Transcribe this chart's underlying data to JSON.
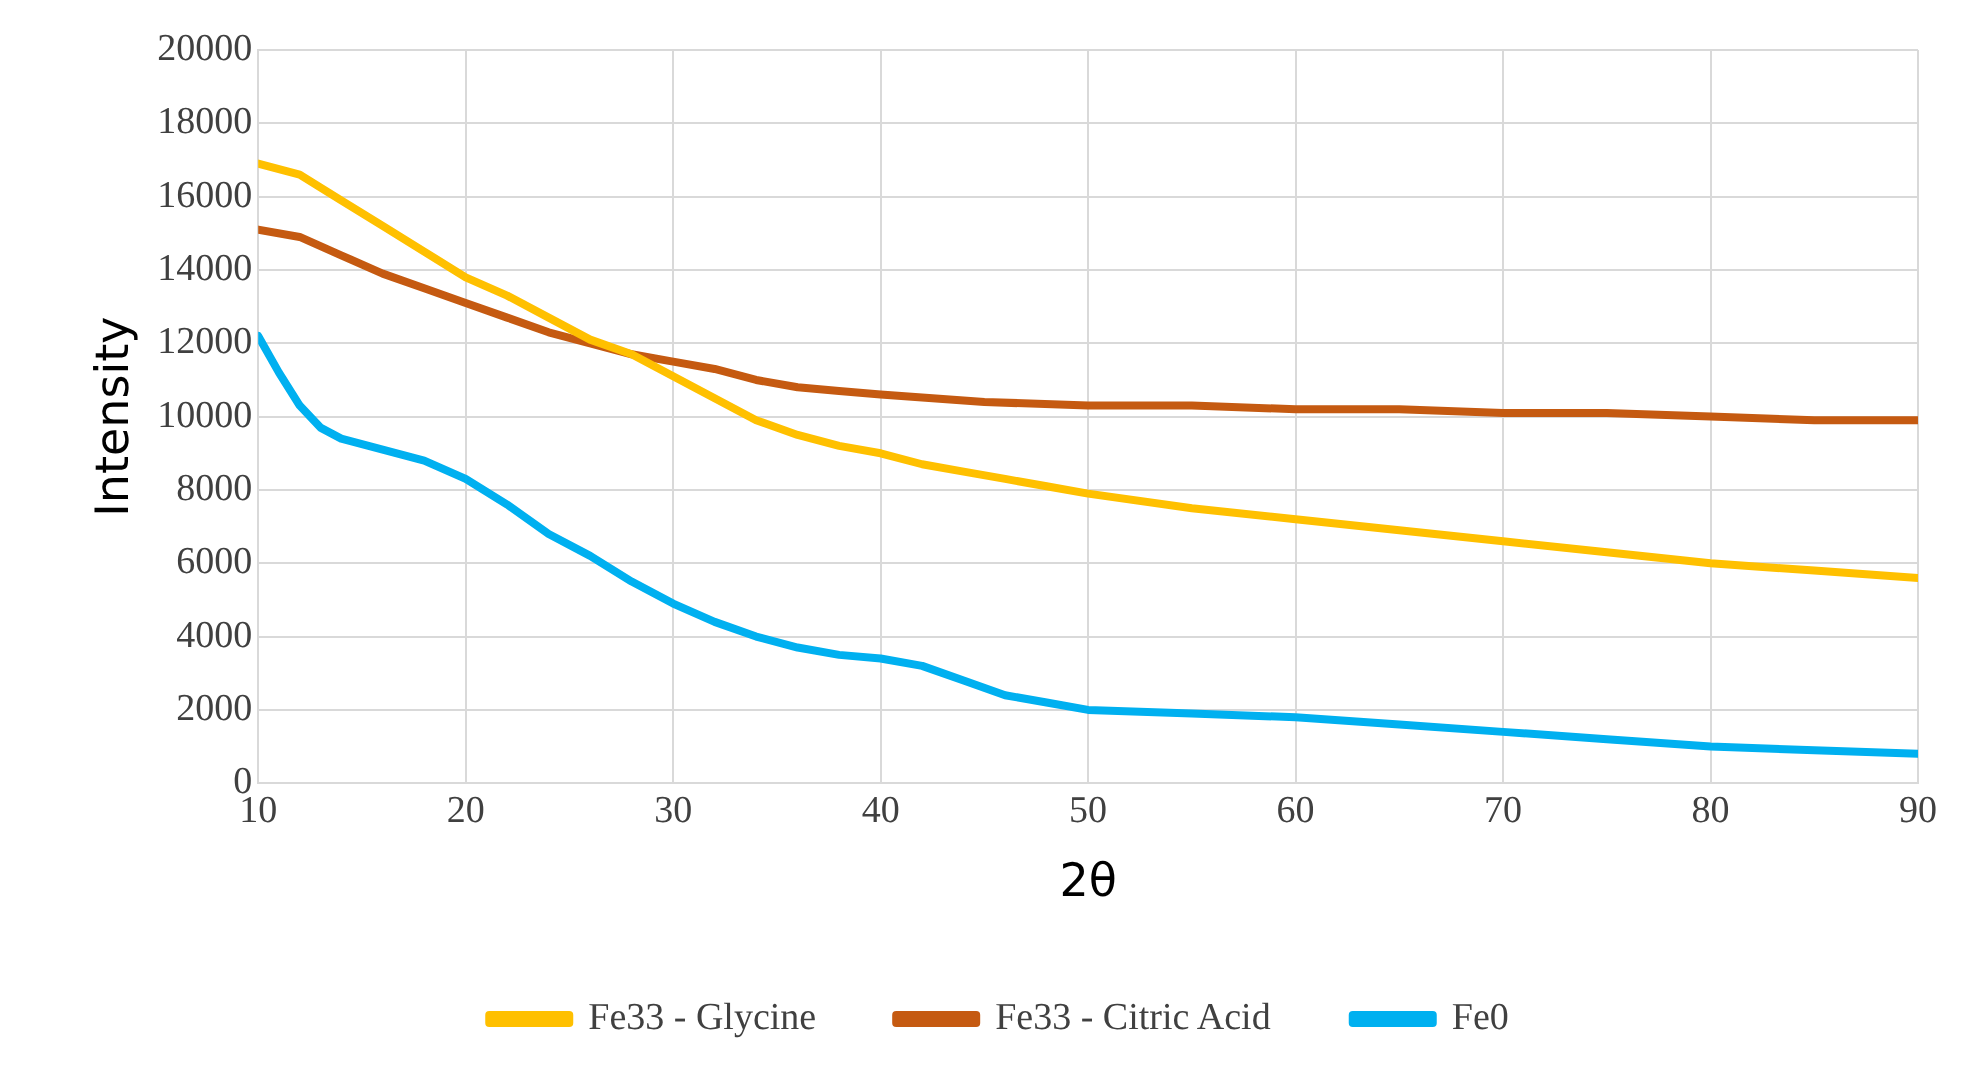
{
  "chart_data": {
    "type": "line",
    "xlabel": "2θ",
    "ylabel": "Intensity",
    "xlim": [
      10,
      90
    ],
    "xticks": [
      10,
      20,
      30,
      40,
      50,
      60,
      70,
      80,
      90
    ],
    "ylim": [
      0,
      20000
    ],
    "yticks": [
      0,
      2000,
      4000,
      6000,
      8000,
      10000,
      12000,
      14000,
      16000,
      18000,
      20000
    ],
    "grid": true,
    "legend": "bottom",
    "marker": "none",
    "line_style": "solid",
    "series": [
      {
        "name": "Fe33 - Glycine",
        "color": "#ffc000",
        "x": [
          10,
          12,
          14,
          16,
          18,
          20,
          22,
          24,
          26,
          28,
          30,
          32,
          34,
          36,
          38,
          40,
          42,
          44,
          46,
          48,
          50,
          55,
          60,
          65,
          70,
          75,
          80,
          85,
          90
        ],
        "values": [
          16900,
          16600,
          15900,
          15200,
          14500,
          13800,
          13300,
          12700,
          12100,
          11700,
          11100,
          10500,
          9900,
          9500,
          9200,
          9000,
          8700,
          8500,
          8300,
          8100,
          7900,
          7500,
          7200,
          6900,
          6600,
          6300,
          6000,
          5800,
          5600
        ]
      },
      {
        "name": "Fe33 - Citric Acid",
        "color": "#c55a11",
        "x": [
          10,
          12,
          14,
          16,
          18,
          20,
          22,
          24,
          26,
          28,
          30,
          32,
          34,
          36,
          38,
          40,
          45,
          50,
          55,
          60,
          65,
          70,
          75,
          80,
          85,
          90
        ],
        "values": [
          15100,
          14900,
          14400,
          13900,
          13500,
          13100,
          12700,
          12300,
          12000,
          11700,
          11500,
          11300,
          11000,
          10800,
          10700,
          10600,
          10400,
          10300,
          10300,
          10200,
          10200,
          10100,
          10100,
          10000,
          9900,
          9900
        ]
      },
      {
        "name": "Fe0",
        "color": "#00b0f0",
        "x": [
          10,
          11,
          12,
          13,
          14,
          16,
          18,
          20,
          22,
          24,
          26,
          28,
          30,
          32,
          34,
          36,
          38,
          40,
          42,
          44,
          46,
          48,
          50,
          55,
          60,
          65,
          70,
          75,
          80,
          85,
          90
        ],
        "values": [
          12200,
          11200,
          10300,
          9700,
          9400,
          9100,
          8800,
          8300,
          7600,
          6800,
          6200,
          5500,
          4900,
          4400,
          4000,
          3700,
          3500,
          3400,
          3200,
          2800,
          2400,
          2200,
          2000,
          1900,
          1800,
          1600,
          1400,
          1200,
          1000,
          900,
          800
        ]
      }
    ]
  }
}
